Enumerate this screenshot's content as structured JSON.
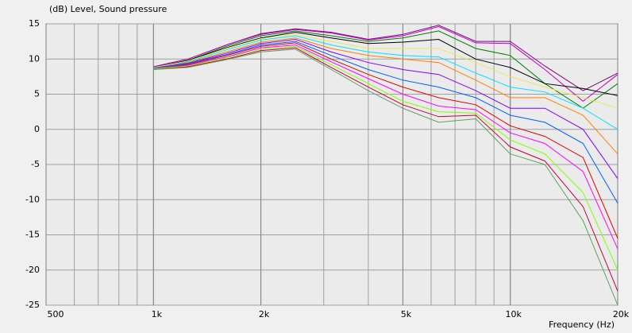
{
  "chart_data": {
    "type": "line",
    "title": "(dB)  Level, Sound pressure",
    "x_label": "Frequency  (Hz)",
    "log_x": true,
    "grid": true,
    "xlim": [
      500,
      20000
    ],
    "ylim": [
      -25,
      15
    ],
    "xticks": [
      500,
      {
        "value": 1000,
        "label": "1k"
      },
      {
        "value": 2000,
        "label": "2k"
      },
      {
        "value": 5000,
        "label": "5k"
      },
      {
        "value": 10000,
        "label": "10k"
      },
      {
        "value": 20000,
        "label": "20k"
      }
    ],
    "yticks": [
      15,
      10,
      5,
      0,
      -5,
      -10,
      -15,
      -20,
      -25
    ],
    "x": [
      1000,
      1250,
      1600,
      2000,
      2500,
      3150,
      4000,
      5000,
      6300,
      8000,
      10000,
      12500,
      16000,
      20000
    ],
    "series": [
      {
        "color": "#800080",
        "values": [
          8.9,
          10,
          12,
          13.6,
          14.3,
          13.8,
          12.8,
          13.5,
          14.8,
          12.5,
          12.5,
          9,
          5.5,
          8
        ]
      },
      {
        "color": "#c000c0",
        "values": [
          8.9,
          10,
          12,
          13.5,
          14.2,
          13.7,
          12.7,
          13.3,
          14.6,
          12.3,
          12.2,
          8.5,
          4,
          7.8
        ]
      },
      {
        "color": "#008000",
        "values": [
          8.8,
          9.8,
          11.8,
          13.3,
          14,
          13.3,
          12.5,
          13,
          14,
          11.5,
          10.5,
          6.5,
          3,
          6.5
        ]
      },
      {
        "color": "#000000",
        "values": [
          8.8,
          9.8,
          11.6,
          13,
          13.8,
          13,
          12.2,
          12.4,
          12.8,
          10,
          8.8,
          6.5,
          5.8,
          4.8
        ]
      },
      {
        "color": "#e8e860",
        "values": [
          8.8,
          9.7,
          11.5,
          12.9,
          13.5,
          12.5,
          11.5,
          11.5,
          11.5,
          9.5,
          7.5,
          6,
          4.5,
          3
        ]
      },
      {
        "color": "#00e0ff",
        "values": [
          8.7,
          9.6,
          11.3,
          12.7,
          13.3,
          12,
          11,
          10.5,
          10.3,
          8,
          6,
          5.3,
          3,
          0
        ]
      },
      {
        "color": "#ff8000",
        "values": [
          8.7,
          9.5,
          11,
          12.4,
          13,
          11.5,
          10.5,
          10,
          9.5,
          7,
          4.5,
          4.5,
          2,
          -3.5
        ]
      },
      {
        "color": "#8000ff",
        "values": [
          8.7,
          9.4,
          10.8,
          12.2,
          12.8,
          11,
          9.5,
          8.5,
          7.8,
          5.5,
          3,
          3,
          0,
          -7
        ]
      },
      {
        "color": "#0060ff",
        "values": [
          8.7,
          9.3,
          10.6,
          12,
          12.5,
          10.5,
          8.5,
          7,
          6,
          4.5,
          2,
          1,
          -2,
          -10.5
        ]
      },
      {
        "color": "#e00000",
        "values": [
          8.6,
          9.2,
          10.5,
          11.8,
          12.3,
          10,
          7.8,
          6,
          4.5,
          3.5,
          0.5,
          -1,
          -4,
          -15.5
        ]
      },
      {
        "color": "#ff00ff",
        "values": [
          8.6,
          9.1,
          10.3,
          11.6,
          12,
          9.6,
          7.2,
          5,
          3.3,
          2.8,
          -0.5,
          -2,
          -6,
          -17
        ]
      },
      {
        "color": "#80ff00",
        "values": [
          8.6,
          9,
          10.2,
          11.4,
          11.8,
          9.2,
          6.5,
          4,
          2.5,
          2.3,
          -1.5,
          -3.5,
          -9,
          -20
        ]
      },
      {
        "color": "#c00040",
        "values": [
          8.5,
          8.9,
          10,
          11.2,
          11.6,
          8.8,
          6,
          3.5,
          1.8,
          2,
          -2.5,
          -4.5,
          -11,
          -23
        ]
      },
      {
        "color": "#60a060",
        "values": [
          8.5,
          8.8,
          9.9,
          11,
          11.4,
          8.5,
          5.5,
          3,
          1,
          1.5,
          -3.5,
          -5,
          -13,
          -25
        ]
      }
    ]
  }
}
